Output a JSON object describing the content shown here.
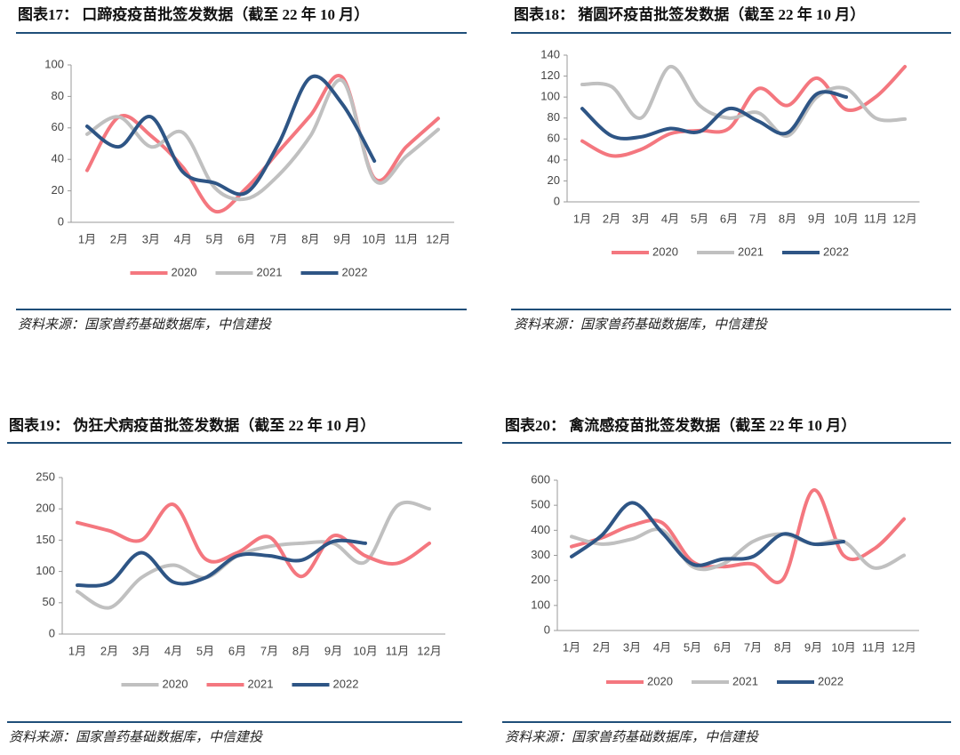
{
  "chart_data": [
    {
      "type": "line",
      "title": "图表17：  口蹄疫疫苗批签发数据（截至 22 年 10 月）",
      "categories": [
        "1月",
        "2月",
        "3月",
        "4月",
        "5月",
        "6月",
        "7月",
        "8月",
        "9月",
        "10月",
        "11月",
        "12月"
      ],
      "ylim": [
        0,
        100
      ],
      "yticks": [
        0,
        20,
        40,
        60,
        80,
        100
      ],
      "series": [
        {
          "name": "2020",
          "color": "#f4777f",
          "values": [
            33,
            67,
            55,
            35,
            7,
            22,
            45,
            68,
            92,
            28,
            48,
            66
          ]
        },
        {
          "name": "2021",
          "color": "#c0c0c0",
          "values": [
            56,
            67,
            48,
            57,
            22,
            15,
            30,
            55,
            90,
            27,
            42,
            59
          ]
        },
        {
          "name": "2022",
          "color": "#2e5585",
          "values": [
            61,
            48,
            67,
            32,
            25,
            19,
            50,
            92,
            75,
            39,
            null,
            null
          ]
        }
      ],
      "source": "资料来源：国家兽药基础数据库，中信建投"
    },
    {
      "type": "line",
      "title": "图表18：  猪圆环疫苗批签发数据（截至 22 年 10 月）",
      "categories": [
        "1月",
        "2月",
        "3月",
        "4月",
        "5月",
        "6月",
        "7月",
        "8月",
        "9月",
        "10月",
        "11月",
        "12月"
      ],
      "ylim": [
        0,
        140
      ],
      "yticks": [
        0,
        20,
        40,
        60,
        80,
        100,
        120,
        140
      ],
      "series": [
        {
          "name": "2020",
          "color": "#f4777f",
          "values": [
            58,
            44,
            50,
            65,
            68,
            70,
            108,
            92,
            118,
            88,
            100,
            129
          ]
        },
        {
          "name": "2021",
          "color": "#c0c0c0",
          "values": [
            112,
            110,
            80,
            129,
            92,
            80,
            85,
            63,
            100,
            108,
            80,
            79
          ]
        },
        {
          "name": "2022",
          "color": "#2e5585",
          "values": [
            89,
            63,
            62,
            70,
            67,
            89,
            77,
            66,
            103,
            100,
            null,
            null
          ]
        }
      ],
      "source": "资料来源：国家兽药基础数据库，中信建投"
    },
    {
      "type": "line",
      "title": "图表19：  伪狂犬病疫苗批签发数据（截至 22 年 10 月）",
      "categories": [
        "1月",
        "2月",
        "3月",
        "4月",
        "5月",
        "6月",
        "7月",
        "8月",
        "9月",
        "10月",
        "11月",
        "12月"
      ],
      "ylim": [
        0,
        250
      ],
      "yticks": [
        0,
        50,
        100,
        150,
        200,
        250
      ],
      "series": [
        {
          "name": "2020",
          "color": "#c0c0c0",
          "values": [
            68,
            42,
            90,
            110,
            90,
            125,
            140,
            145,
            145,
            115,
            205,
            200
          ]
        },
        {
          "name": "2021",
          "color": "#f4777f",
          "values": [
            178,
            165,
            150,
            207,
            120,
            130,
            155,
            92,
            157,
            125,
            113,
            145
          ]
        },
        {
          "name": "2022",
          "color": "#2e5585",
          "values": [
            78,
            82,
            130,
            83,
            90,
            125,
            125,
            118,
            148,
            145,
            null,
            null
          ]
        }
      ],
      "source": "资料来源：国家兽药基础数据库，中信建投"
    },
    {
      "type": "line",
      "title": "图表20：  禽流感疫苗批签发数据（截至 22 年 10 月）",
      "categories": [
        "1月",
        "2月",
        "3月",
        "4月",
        "5月",
        "6月",
        "7月",
        "8月",
        "9月",
        "10月",
        "11月",
        "12月"
      ],
      "ylim": [
        0,
        600
      ],
      "yticks": [
        0,
        100,
        200,
        300,
        400,
        500,
        600
      ],
      "series": [
        {
          "name": "2020",
          "color": "#f4777f",
          "values": [
            335,
            370,
            420,
            430,
            275,
            255,
            265,
            205,
            560,
            300,
            325,
            445
          ]
        },
        {
          "name": "2021",
          "color": "#c0c0c0",
          "values": [
            375,
            345,
            365,
            400,
            255,
            265,
            355,
            385,
            345,
            355,
            250,
            300
          ]
        },
        {
          "name": "2022",
          "color": "#2e5585",
          "values": [
            295,
            380,
            510,
            390,
            265,
            285,
            295,
            385,
            345,
            355,
            null,
            null
          ]
        }
      ],
      "source": "资料来源：国家兽药基础数据库，中信建投"
    }
  ]
}
